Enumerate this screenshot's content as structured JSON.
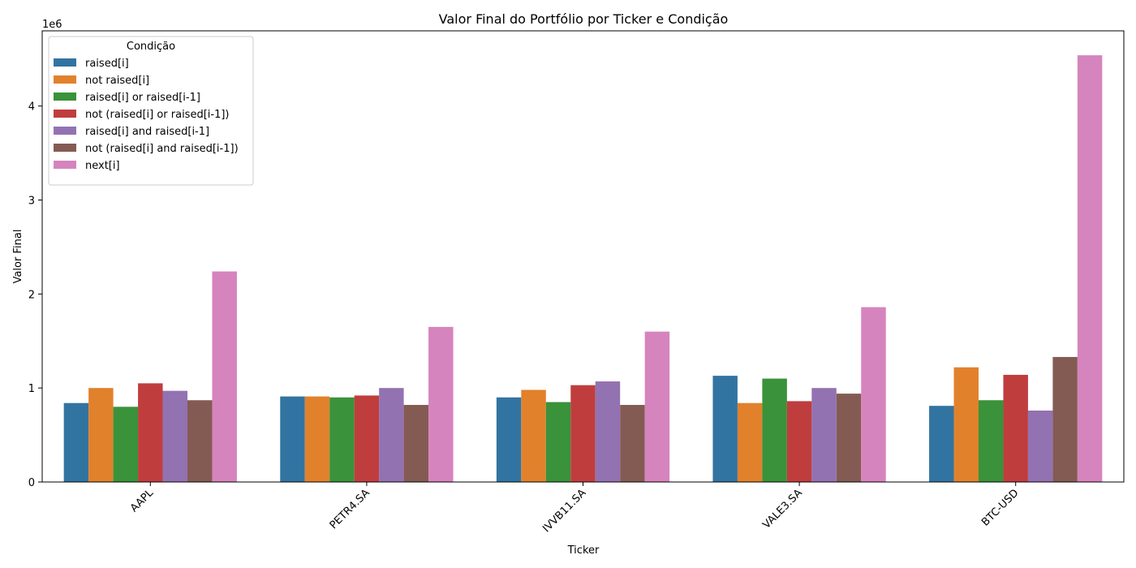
{
  "chart_data": {
    "type": "bar",
    "title": "Valor Final do Portfólio por Ticker e Condição",
    "xlabel": "Ticker",
    "ylabel": "Valor Final",
    "y_multiplier_label": "1e6",
    "ylim": [
      0,
      4800000
    ],
    "y_ticks": [
      0,
      1000000,
      2000000,
      3000000,
      4000000
    ],
    "y_tick_labels": [
      "0",
      "1",
      "2",
      "3",
      "4"
    ],
    "grid": false,
    "legend_title": "Condição",
    "legend_position": "top-left",
    "categories": [
      "AAPL",
      "PETR4.SA",
      "IVVB11.SA",
      "VALE3.SA",
      "BTC-USD"
    ],
    "series": [
      {
        "name": "raised[i]",
        "color": "#3274a1",
        "values": [
          840000,
          910000,
          900000,
          1130000,
          810000
        ]
      },
      {
        "name": "not raised[i]",
        "color": "#e1812c",
        "values": [
          1000000,
          910000,
          980000,
          840000,
          1220000
        ]
      },
      {
        "name": "raised[i] or raised[i-1]",
        "color": "#3a923a",
        "values": [
          800000,
          900000,
          850000,
          1100000,
          870000
        ]
      },
      {
        "name": "not (raised[i] or raised[i-1])",
        "color": "#c03d3e",
        "values": [
          1050000,
          920000,
          1030000,
          860000,
          1140000
        ]
      },
      {
        "name": "raised[i] and raised[i-1]",
        "color": "#9372b2",
        "values": [
          970000,
          1000000,
          1070000,
          1000000,
          760000
        ]
      },
      {
        "name": "not (raised[i] and raised[i-1])",
        "color": "#845b53",
        "values": [
          870000,
          820000,
          820000,
          940000,
          1330000
        ]
      },
      {
        "name": "next[i]",
        "color": "#d684bd",
        "values": [
          2240000,
          1650000,
          1600000,
          1860000,
          4540000
        ]
      }
    ]
  }
}
